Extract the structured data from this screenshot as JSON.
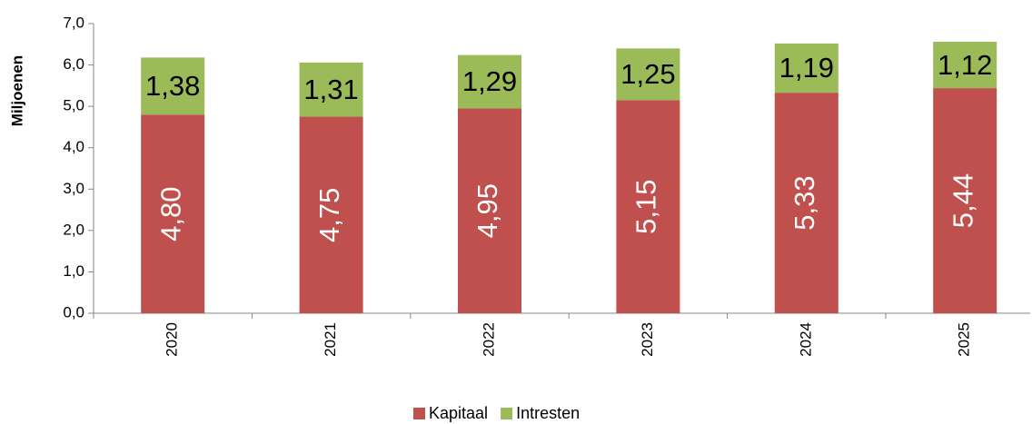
{
  "chart_data": {
    "type": "bar",
    "stacked": true,
    "y_label": "Miljoenen",
    "categories": [
      "2020",
      "2021",
      "2022",
      "2023",
      "2024",
      "2025"
    ],
    "series": [
      {
        "name": "Kapitaal",
        "color": "#c0504d",
        "values": [
          4.8,
          4.75,
          4.95,
          5.15,
          5.33,
          5.44
        ],
        "value_labels": [
          "4,80",
          "4,75",
          "4,95",
          "5,15",
          "5,33",
          "5,44"
        ]
      },
      {
        "name": "Intresten",
        "color": "#9bbb59",
        "values": [
          1.38,
          1.31,
          1.29,
          1.25,
          1.19,
          1.12
        ],
        "value_labels": [
          "1,38",
          "1,31",
          "1,29",
          "1,25",
          "1,19",
          "1,12"
        ]
      }
    ],
    "ylim": [
      0,
      7
    ],
    "yticks": [
      {
        "value": 0,
        "label": "0,0"
      },
      {
        "value": 1,
        "label": "1,0"
      },
      {
        "value": 2,
        "label": "2,0"
      },
      {
        "value": 3,
        "label": "3,0"
      },
      {
        "value": 4,
        "label": "4,0"
      },
      {
        "value": 5,
        "label": "5,0"
      },
      {
        "value": 6,
        "label": "6,0"
      },
      {
        "value": 7,
        "label": "7,0"
      }
    ],
    "legend": "bottom",
    "grid": false
  }
}
